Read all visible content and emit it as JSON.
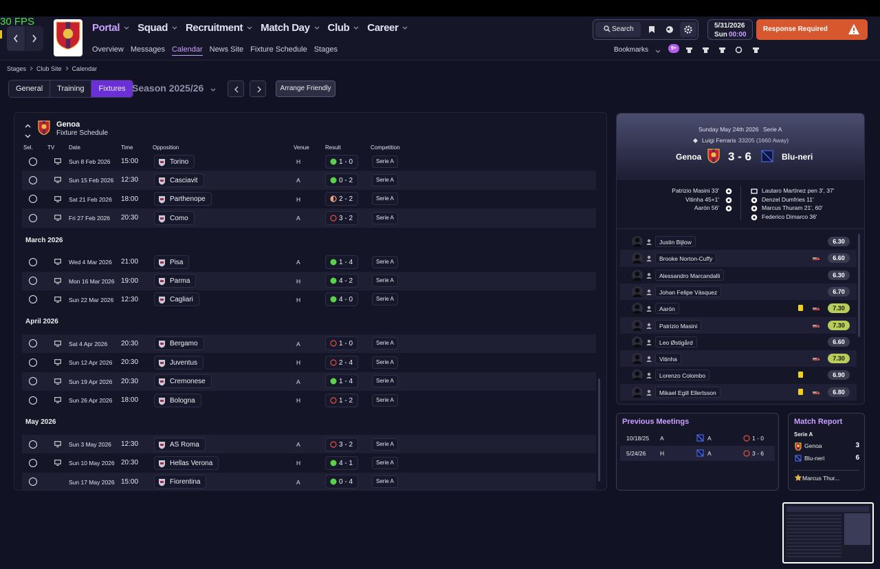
{
  "fps": "30 FPS",
  "nav": {
    "main": [
      "Portal",
      "Squad",
      "Recruitment",
      "Match Day",
      "Club",
      "Career"
    ],
    "active_main": "Portal",
    "sub": [
      "Overview",
      "Messages",
      "Calendar",
      "News Site",
      "Fixture Schedule",
      "Stages"
    ],
    "active_sub": "Calendar"
  },
  "search": "Search",
  "clock": {
    "date": "5/31/2026",
    "day": "Sun",
    "time": "00:00"
  },
  "response": "Response Required",
  "bookmarks": {
    "label": "Bookmarks",
    "badge": "9+"
  },
  "breadcrumb": [
    "Stages",
    "Club Site",
    "Calendar"
  ],
  "tabs": {
    "items": [
      "General",
      "Training",
      "Fixtures"
    ],
    "active": "Fixtures"
  },
  "season": "Season 2025/26",
  "arrange": "Arrange Friendly",
  "schedule": {
    "team": "Genoa",
    "subtitle": "Fixture Schedule",
    "columns": [
      "Sel.",
      "TV",
      "Date",
      "Time",
      "Opposition",
      "Venue",
      "Result",
      "Competition"
    ],
    "groups": [
      {
        "rows": [
          [
            "Sun 8 Feb 2026",
            "15:00",
            "Torino",
            "H",
            "1 - 0",
            "Serie A"
          ],
          [
            "Sun 15 Feb 2026",
            "12:30",
            "Casciavit",
            "A",
            "0 - 2",
            "Serie A"
          ],
          [
            "Sat 21 Feb 2026",
            "18:00",
            "Parthenope",
            "H",
            "2 - 2",
            "Serie A"
          ],
          [
            "Fri 27 Feb 2026",
            "20:30",
            "Como",
            "A",
            "3 - 2",
            "Serie A"
          ]
        ]
      },
      {
        "month": "March 2026",
        "rows": [
          [
            "Wed 4 Mar 2026",
            "21:00",
            "Pisa",
            "A",
            "1 - 4",
            "Serie A"
          ],
          [
            "Mon 16 Mar 2026",
            "19:00",
            "Parma",
            "H",
            "4 - 2",
            "Serie A"
          ],
          [
            "Sun 22 Mar 2026",
            "12:30",
            "Cagliari",
            "H",
            "4 - 0",
            "Serie A"
          ]
        ]
      },
      {
        "month": "April 2026",
        "rows": [
          [
            "Sat 4 Apr 2026",
            "20:30",
            "Bergamo",
            "A",
            "1 - 0",
            "Serie A"
          ],
          [
            "Sun 12 Apr 2026",
            "20:30",
            "Juventus",
            "H",
            "2 - 4",
            "Serie A"
          ],
          [
            "Sun 19 Apr 2026",
            "20:30",
            "Cremonese",
            "A",
            "1 - 4",
            "Serie A"
          ],
          [
            "Sun 26 Apr 2026",
            "18:00",
            "Bologna",
            "H",
            "1 - 2",
            "Serie A"
          ]
        ]
      },
      {
        "month": "May 2026",
        "rows": [
          [
            "Sun 3 May 2026",
            "12:30",
            "AS Roma",
            "A",
            "3 - 2",
            "Serie A"
          ],
          [
            "Sun 10 May 2026",
            "20:30",
            "Hellas Verona",
            "H",
            "4 - 1",
            "Serie A"
          ],
          [
            "Sun 17 May 2026",
            "15:00",
            "Fiorentina",
            "A",
            "0 - 4",
            "Serie A"
          ]
        ]
      }
    ]
  },
  "match": {
    "date": "Sunday May 24th 2026",
    "competition": "Serie A",
    "stadium": "Luigi Ferraris",
    "attendance": "33205 (1660 Away)",
    "home": "Genoa",
    "score": "3 - 6",
    "away": "Blu-neri",
    "home_scorers": [
      "Patrizio Masini 33'",
      "Vitinha 45+1'",
      "Aarón 56'"
    ],
    "away_scorers": [
      "Lautaro Martínez pen 3', 37'",
      "Denzel Dumfries 11'",
      "Marcus Thuram 21', 60'",
      "Federico Dimarco 36'"
    ],
    "players": [
      {
        "name": "Justin Bijlow",
        "rating": "6.30"
      },
      {
        "name": "Brooke Norton-Cuffy",
        "rating": "6.60",
        "substituted": true
      },
      {
        "name": "Alessandro Marcandalli",
        "rating": "6.30"
      },
      {
        "name": "Johan Felipe Vásquez",
        "rating": "6.70"
      },
      {
        "name": "Aarón",
        "rating": "7.30",
        "yellow_card": true,
        "substituted": true
      },
      {
        "name": "Patrizio Masini",
        "rating": "7.30",
        "substituted": true
      },
      {
        "name": "Leo Østigård",
        "rating": "6.60"
      },
      {
        "name": "Vitinha",
        "rating": "7.30",
        "substituted": true
      },
      {
        "name": "Lorenzo Colombo",
        "rating": "6.90",
        "yellow_card": true
      },
      {
        "name": "Mikael Egill Ellertsson",
        "rating": "6.80",
        "yellow_card": true,
        "substituted": true
      }
    ]
  },
  "previous_meetings": {
    "title": "Previous Meetings",
    "rows": [
      [
        "10/18/25",
        "A",
        "A",
        "1 - 0"
      ],
      [
        "5/24/26",
        "H",
        "A",
        "3 - 6"
      ]
    ]
  },
  "match_report": {
    "title": "Match Report",
    "competition": "Serie A",
    "teams": [
      {
        "name": "Genoa",
        "goals": 3
      },
      {
        "name": "Blu-neri",
        "goals": 6
      }
    ],
    "player_of_match": "Marcus Thur..."
  }
}
